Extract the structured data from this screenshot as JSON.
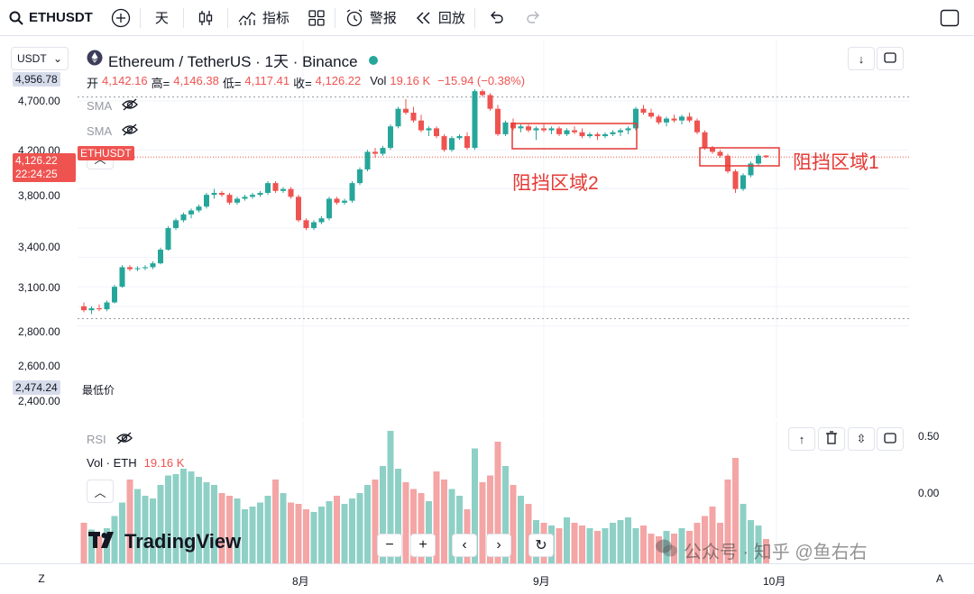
{
  "toolbar": {
    "symbol": "ETHUSDT",
    "interval": "天",
    "indicators_label": "指标",
    "alert_label": "警报",
    "replay_label": "回放"
  },
  "header": {
    "currency": "USDT",
    "title": "Ethereum / TetherUS · 1天 · Binance"
  },
  "ohlc": {
    "open_label": "开",
    "open_value": "4,142.16",
    "high_label": "高=",
    "high_value": "4,146.38",
    "low_label": "低=",
    "low_value": "4,117.41",
    "close_label": "收=",
    "close_value": "4,126.22",
    "vol_label": "Vol",
    "vol_value": "19.16 K",
    "change": "−15.94 (−0.38%)"
  },
  "indicators": {
    "sma1": "SMA",
    "sma2": "SMA",
    "rsi": "RSI",
    "vol_name": "Vol · ETH",
    "vol_value": "19.16 K"
  },
  "price_axis": {
    "top_badge": "4,956.78",
    "labels": [
      "4,700.00",
      "4,200.00",
      "3,800.00",
      "3,400.00",
      "3,100.00",
      "2,800.00",
      "2,600.00",
      "2,400.00"
    ],
    "current_price": "4,126.22",
    "countdown": "22:24:25",
    "low_badge": "2,474.24",
    "low_label": "最低价",
    "symbol_tag": "ETHUSDT"
  },
  "lower_axis": {
    "labels": [
      "0.50",
      "0.00"
    ]
  },
  "time_axis": {
    "labels": [
      "8月",
      "9月",
      "10月"
    ],
    "left_btn": "Z",
    "right_btn": "A"
  },
  "annotations": {
    "zone1": "阻挡区域1",
    "zone2": "阻挡区域2"
  },
  "branding": {
    "logo": "TradingView",
    "watermark": "公众号 · 知乎 @鱼右右"
  },
  "colors": {
    "up": "#26a69a",
    "down": "#ef5350",
    "vol_up": "#8fd0c6",
    "vol_down": "#f4a5a5",
    "accent_red": "#e53935"
  },
  "chart_data": {
    "type": "candlestick",
    "ylim": [
      2400,
      4800
    ],
    "candles": [
      [
        2600,
        2640,
        2540,
        2560
      ],
      [
        2560,
        2600,
        2520,
        2580
      ],
      [
        2580,
        2620,
        2550,
        2570
      ],
      [
        2570,
        2660,
        2550,
        2640
      ],
      [
        2640,
        2820,
        2630,
        2800
      ],
      [
        2800,
        3020,
        2790,
        3000
      ],
      [
        3000,
        3020,
        2960,
        2980
      ],
      [
        2980,
        3010,
        2960,
        2990
      ],
      [
        2990,
        3020,
        2970,
        3000
      ],
      [
        3000,
        3060,
        2980,
        3040
      ],
      [
        3040,
        3200,
        3030,
        3180
      ],
      [
        3180,
        3420,
        3170,
        3400
      ],
      [
        3400,
        3500,
        3380,
        3480
      ],
      [
        3480,
        3560,
        3460,
        3540
      ],
      [
        3540,
        3600,
        3500,
        3580
      ],
      [
        3580,
        3640,
        3560,
        3620
      ],
      [
        3620,
        3760,
        3600,
        3740
      ],
      [
        3740,
        3800,
        3700,
        3760
      ],
      [
        3760,
        3780,
        3720,
        3740
      ],
      [
        3740,
        3760,
        3640,
        3660
      ],
      [
        3660,
        3720,
        3640,
        3700
      ],
      [
        3700,
        3740,
        3680,
        3720
      ],
      [
        3720,
        3760,
        3700,
        3740
      ],
      [
        3740,
        3780,
        3720,
        3760
      ],
      [
        3760,
        3880,
        3740,
        3860
      ],
      [
        3860,
        3880,
        3760,
        3780
      ],
      [
        3780,
        3820,
        3760,
        3800
      ],
      [
        3800,
        3820,
        3700,
        3720
      ],
      [
        3720,
        3740,
        3460,
        3480
      ],
      [
        3480,
        3500,
        3380,
        3400
      ],
      [
        3400,
        3480,
        3380,
        3460
      ],
      [
        3460,
        3520,
        3440,
        3500
      ],
      [
        3500,
        3720,
        3480,
        3700
      ],
      [
        3700,
        3720,
        3640,
        3660
      ],
      [
        3660,
        3700,
        3640,
        3680
      ],
      [
        3680,
        3880,
        3660,
        3860
      ],
      [
        3860,
        4020,
        3840,
        4000
      ],
      [
        4000,
        4200,
        3980,
        4180
      ],
      [
        4180,
        4220,
        4120,
        4160
      ],
      [
        4160,
        4240,
        4140,
        4220
      ],
      [
        4220,
        4460,
        4200,
        4440
      ],
      [
        4440,
        4640,
        4420,
        4620
      ],
      [
        4620,
        4720,
        4560,
        4580
      ],
      [
        4580,
        4640,
        4480,
        4500
      ],
      [
        4500,
        4560,
        4380,
        4400
      ],
      [
        4400,
        4440,
        4340,
        4420
      ],
      [
        4420,
        4440,
        4320,
        4340
      ],
      [
        4340,
        4360,
        4180,
        4200
      ],
      [
        4200,
        4340,
        4180,
        4320
      ],
      [
        4320,
        4360,
        4300,
        4340
      ],
      [
        4340,
        4380,
        4200,
        4220
      ],
      [
        4220,
        4820,
        4200,
        4800
      ],
      [
        4800,
        4820,
        4740,
        4760
      ],
      [
        4760,
        4780,
        4600,
        4620
      ],
      [
        4620,
        4660,
        4340,
        4360
      ],
      [
        4360,
        4500,
        4340,
        4480
      ],
      [
        4480,
        4520,
        4400,
        4420
      ],
      [
        4420,
        4460,
        4380,
        4440
      ],
      [
        4440,
        4460,
        4380,
        4400
      ],
      [
        4400,
        4440,
        4300,
        4420
      ],
      [
        4420,
        4460,
        4380,
        4400
      ],
      [
        4400,
        4440,
        4360,
        4420
      ],
      [
        4420,
        4440,
        4340,
        4360
      ],
      [
        4360,
        4420,
        4340,
        4400
      ],
      [
        4400,
        4440,
        4360,
        4380
      ],
      [
        4380,
        4420,
        4320,
        4340
      ],
      [
        4340,
        4380,
        4320,
        4360
      ],
      [
        4360,
        4380,
        4300,
        4340
      ],
      [
        4340,
        4380,
        4320,
        4360
      ],
      [
        4360,
        4400,
        4340,
        4380
      ],
      [
        4380,
        4420,
        4340,
        4400
      ],
      [
        4400,
        4440,
        4360,
        4420
      ],
      [
        4420,
        4640,
        4400,
        4620
      ],
      [
        4620,
        4660,
        4560,
        4580
      ],
      [
        4580,
        4620,
        4520,
        4540
      ],
      [
        4540,
        4560,
        4460,
        4480
      ],
      [
        4480,
        4540,
        4440,
        4520
      ],
      [
        4520,
        4560,
        4480,
        4500
      ],
      [
        4500,
        4560,
        4460,
        4540
      ],
      [
        4540,
        4580,
        4480,
        4500
      ],
      [
        4500,
        4520,
        4360,
        4380
      ],
      [
        4380,
        4400,
        4200,
        4220
      ],
      [
        4220,
        4240,
        4160,
        4180
      ],
      [
        4180,
        4200,
        4120,
        4140
      ],
      [
        4140,
        4160,
        3960,
        3980
      ],
      [
        3980,
        4000,
        3760,
        3800
      ],
      [
        3800,
        3960,
        3780,
        3940
      ],
      [
        3940,
        4080,
        3920,
        4060
      ],
      [
        4060,
        4160,
        4040,
        4140
      ],
      [
        4142,
        4146,
        4117,
        4126
      ]
    ],
    "volumes": [
      0.3,
      0.25,
      0.2,
      0.26,
      0.35,
      0.45,
      0.62,
      0.55,
      0.5,
      0.48,
      0.58,
      0.65,
      0.66,
      0.7,
      0.68,
      0.64,
      0.6,
      0.58,
      0.52,
      0.5,
      0.48,
      0.4,
      0.42,
      0.45,
      0.5,
      0.62,
      0.52,
      0.45,
      0.44,
      0.4,
      0.38,
      0.42,
      0.46,
      0.5,
      0.44,
      0.48,
      0.52,
      0.58,
      0.62,
      0.72,
      0.98,
      0.7,
      0.6,
      0.55,
      0.52,
      0.46,
      0.68,
      0.62,
      0.55,
      0.5,
      0.4,
      0.85,
      0.6,
      0.65,
      0.9,
      0.72,
      0.58,
      0.5,
      0.44,
      0.32,
      0.3,
      0.28,
      0.26,
      0.34,
      0.3,
      0.28,
      0.26,
      0.24,
      0.26,
      0.3,
      0.32,
      0.34,
      0.26,
      0.28,
      0.22,
      0.2,
      0.24,
      0.22,
      0.26,
      0.24,
      0.3,
      0.35,
      0.42,
      0.3,
      0.62,
      0.78,
      0.44,
      0.32,
      0.28,
      0.18
    ]
  }
}
